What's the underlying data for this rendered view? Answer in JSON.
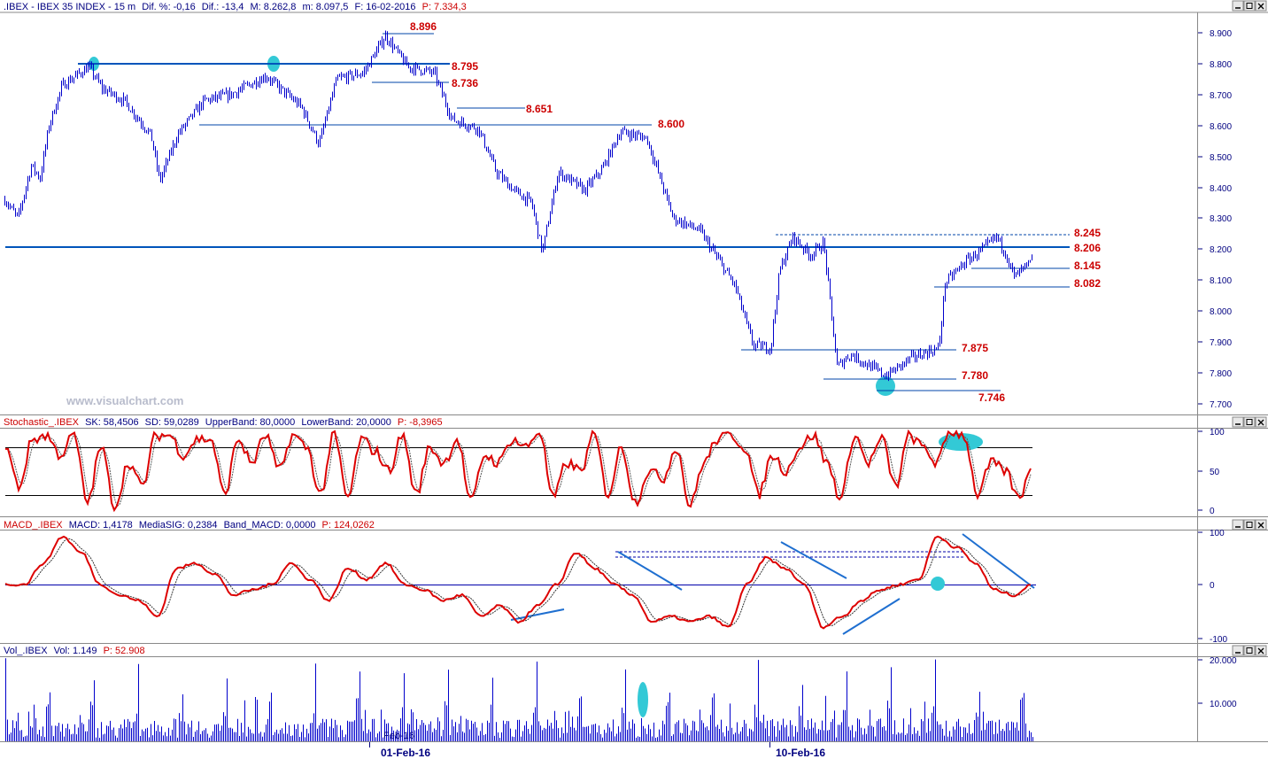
{
  "chart_data": [
    {
      "type": "line",
      "title": ".IBEX - IBEX 35 INDEX - 15 m",
      "header_stats": {
        "pct_label": "Dif. %:",
        "pct": "-0,16",
        "dif_label": "Dif.:",
        "dif": "-13,4",
        "max_label": "M:",
        "max": "8.262,8",
        "min_label": "m:",
        "min": "8.097,5",
        "date_label": "F:",
        "date": "16-02-2016",
        "p_label": "P:",
        "p": "7.334,3"
      },
      "y_ticks": [
        "8.900",
        "8.800",
        "8.700",
        "8.600",
        "8.500",
        "8.400",
        "8.300",
        "8.200",
        "8.100",
        "8.000",
        "7.900",
        "7.800",
        "7.700"
      ],
      "ylim": [
        7680,
        8960
      ],
      "levels": [
        "8.896",
        "8.795",
        "8.736",
        "8.651",
        "8.600",
        "8.245",
        "8.206",
        "8.145",
        "8.082",
        "7.875",
        "7.780",
        "7.746"
      ],
      "watermark": "www.visualchart.com",
      "anchors": [
        [
          5,
          8360
        ],
        [
          20,
          8300
        ],
        [
          35,
          8470
        ],
        [
          45,
          8430
        ],
        [
          55,
          8600
        ],
        [
          70,
          8730
        ],
        [
          100,
          8790
        ],
        [
          115,
          8720
        ],
        [
          140,
          8680
        ],
        [
          170,
          8570
        ],
        [
          180,
          8420
        ],
        [
          200,
          8570
        ],
        [
          230,
          8680
        ],
        [
          260,
          8700
        ],
        [
          300,
          8760
        ],
        [
          320,
          8710
        ],
        [
          340,
          8660
        ],
        [
          360,
          8540
        ],
        [
          380,
          8750
        ],
        [
          410,
          8770
        ],
        [
          435,
          8890
        ],
        [
          460,
          8790
        ],
        [
          490,
          8770
        ],
        [
          510,
          8620
        ],
        [
          540,
          8590
        ],
        [
          560,
          8450
        ],
        [
          580,
          8390
        ],
        [
          600,
          8350
        ],
        [
          612,
          8190
        ],
        [
          630,
          8450
        ],
        [
          660,
          8390
        ],
        [
          680,
          8460
        ],
        [
          700,
          8580
        ],
        [
          730,
          8560
        ],
        [
          760,
          8300
        ],
        [
          790,
          8260
        ],
        [
          810,
          8170
        ],
        [
          830,
          8080
        ],
        [
          850,
          7890
        ],
        [
          870,
          7880
        ],
        [
          880,
          8130
        ],
        [
          895,
          8240
        ],
        [
          915,
          8180
        ],
        [
          930,
          8220
        ],
        [
          937,
          8030
        ],
        [
          945,
          7820
        ],
        [
          960,
          7860
        ],
        [
          1000,
          7790
        ],
        [
          1030,
          7850
        ],
        [
          1060,
          7880
        ],
        [
          1067,
          8090
        ],
        [
          1090,
          8160
        ],
        [
          1110,
          8200
        ],
        [
          1125,
          8240
        ],
        [
          1135,
          8190
        ],
        [
          1145,
          8110
        ],
        [
          1165,
          8160
        ]
      ]
    },
    {
      "type": "line",
      "title": "Stochastic_.IBEX",
      "header_stats": {
        "sk_label": "SK:",
        "sk": "58,4506",
        "sd_label": "SD:",
        "sd": "59,0289",
        "ub_label": "UpperBand:",
        "ub": "80,0000",
        "lb_label": "LowerBand:",
        "lb": "20,0000",
        "p_label": "P:",
        "p": "-8,3965"
      },
      "y_ticks": [
        "100",
        "50",
        "0"
      ],
      "ylim": [
        0,
        100
      ],
      "bands": [
        80,
        20
      ],
      "series": [
        {
          "values": [
            80,
            30,
            90,
            95,
            70,
            95,
            10,
            80,
            5,
            60,
            30,
            95,
            95,
            70,
            90,
            90,
            20,
            90,
            60,
            95,
            50,
            95,
            80,
            20,
            95,
            15,
            90,
            75,
            50,
            95,
            20,
            80,
            60,
            90,
            10,
            70,
            60,
            90,
            80,
            100,
            15,
            60,
            50,
            95,
            20,
            80,
            10,
            50,
            40,
            80,
            5,
            60,
            90,
            95,
            80,
            20,
            70,
            50,
            80,
            95,
            60,
            15,
            95,
            60,
            90,
            30,
            95,
            80,
            60,
            100,
            95,
            20,
            60,
            50,
            15,
            60
          ]
        }
      ]
    },
    {
      "type": "line",
      "title": "MACD_.IBEX",
      "header_stats": {
        "macd_label": "MACD:",
        "macd": "1,4178",
        "sig_label": "MediaSIG:",
        "sig": "0,2384",
        "band_label": "Band_MACD:",
        "band": "0,0000",
        "p_label": "P:",
        "p": "124,0262"
      },
      "y_ticks": [
        "100",
        "0",
        "-100"
      ],
      "ylim": [
        -100,
        100
      ],
      "series": [
        {
          "values": [
            0,
            0,
            40,
            90,
            60,
            0,
            -20,
            -30,
            -60,
            30,
            40,
            20,
            -20,
            -10,
            0,
            40,
            10,
            -30,
            30,
            10,
            40,
            0,
            -10,
            -30,
            -20,
            -60,
            -40,
            -70,
            -40,
            0,
            60,
            30,
            0,
            -20,
            -70,
            -60,
            -70,
            -60,
            -80,
            0,
            50,
            30,
            0,
            -80,
            -60,
            -30,
            -10,
            0,
            10,
            90,
            70,
            40,
            -10,
            -20,
            0
          ]
        }
      ]
    },
    {
      "type": "bar",
      "title": "Vol_.IBEX",
      "header_stats": {
        "vol_label": "Vol:",
        "vol": "1.149",
        "p_label": "P:",
        "p": "52.908"
      },
      "y_ticks": [
        "20.000",
        "10.000"
      ],
      "ylim": [
        0,
        20000
      ],
      "x_ticks": [
        "01-Feb-16",
        "10-Feb-16"
      ],
      "x_overlay_label": "Feb-16"
    }
  ]
}
